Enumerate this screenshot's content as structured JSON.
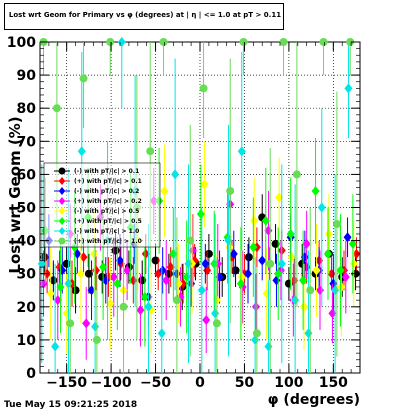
{
  "title": "Lost wrt Geom for Primary vs φ (degrees) at | η | <= 1.0 at pT > 0.11",
  "timestamp": "Tue May 15 09:21:25 2018",
  "chart_data": {
    "type": "scatter",
    "title": "Lost wrt Geom for Primary vs φ (degrees) at | η | <= 1.0 at pT > 0.11",
    "xlabel": "φ (degrees)",
    "ylabel": "Lost wrt Geom (%)",
    "xlim": [
      -180,
      180
    ],
    "ylim": [
      0,
      100
    ],
    "x_ticks": [
      -150,
      -100,
      -50,
      0,
      50,
      100,
      150
    ],
    "x_tick_labels": [
      "−150",
      "−100",
      "−50",
      "0",
      "50",
      "100",
      "150"
    ],
    "y_ticks": [
      0,
      10,
      20,
      30,
      40,
      50,
      60,
      70,
      80,
      90,
      100
    ],
    "y_tick_labels": [
      "0",
      "10",
      "20",
      "30",
      "40",
      "50",
      "60",
      "70",
      "80",
      "90",
      "100"
    ],
    "grid": true,
    "legend_position": "left",
    "markers": [
      "circle",
      "diamond"
    ],
    "series": [
      {
        "name": "(-) with pT/|c| > 0.1",
        "marker": "circle",
        "color": "#000000",
        "x": [
          -175,
          -165,
          -150,
          -140,
          -125,
          -110,
          -95,
          -80,
          -65,
          -50,
          -35,
          -20,
          -5,
          10,
          25,
          40,
          55,
          70,
          85,
          100,
          115,
          130,
          145,
          160,
          175
        ],
        "y": [
          35,
          28,
          33,
          25,
          30,
          29,
          37,
          32,
          28,
          34,
          30,
          26,
          33,
          36,
          29,
          31,
          35,
          47,
          39,
          27,
          33,
          30,
          36,
          29,
          30
        ],
        "err": [
          5,
          6,
          5,
          7,
          6,
          5,
          6,
          5,
          6,
          5,
          6,
          7,
          5,
          6,
          6,
          5,
          6,
          7,
          6,
          5,
          6,
          5,
          6,
          6,
          5
        ]
      },
      {
        "name": "(+) with pT/|c| > 0.1",
        "marker": "diamond",
        "color": "#ff0000",
        "x": [
          -172,
          -158,
          -144,
          -131,
          -117,
          -103,
          -89,
          -75,
          -61,
          -47,
          -33,
          -19,
          -6,
          8,
          22,
          36,
          50,
          64,
          78,
          92,
          106,
          120,
          134,
          148,
          162,
          176
        ],
        "y": [
          30,
          32,
          27,
          35,
          31,
          29,
          33,
          28,
          36,
          30,
          32,
          27,
          34,
          31,
          29,
          35,
          30,
          38,
          33,
          37,
          28,
          32,
          34,
          30,
          31,
          36
        ],
        "err": [
          6,
          5,
          7,
          5,
          6,
          6,
          5,
          7,
          6,
          5,
          6,
          6,
          5,
          6,
          7,
          5,
          6,
          6,
          5,
          6,
          7,
          5,
          6,
          5,
          6,
          5
        ]
      },
      {
        "name": "(-) with pT/|c| > 0.2",
        "marker": "diamond",
        "color": "#0000ff",
        "x": [
          -170,
          -155,
          -138,
          -122,
          -106,
          -90,
          -74,
          -58,
          -42,
          -26,
          -10,
          6,
          22,
          38,
          54,
          70,
          86,
          102,
          118,
          134,
          150,
          166
        ],
        "y": [
          40,
          31,
          36,
          25,
          28,
          34,
          39,
          23,
          31,
          30,
          27,
          33,
          29,
          36,
          30,
          34,
          28,
          41,
          35,
          31,
          27,
          41
        ],
        "err": [
          8,
          7,
          6,
          9,
          7,
          8,
          6,
          9,
          7,
          8,
          7,
          6,
          8,
          7,
          9,
          6,
          8,
          7,
          8,
          7,
          9,
          6
        ]
      },
      {
        "name": "(+) with pT/|c| > 0.2",
        "marker": "diamond",
        "color": "#ff00ff",
        "x": [
          -176,
          -160,
          -146,
          -128,
          -112,
          -97,
          -82,
          -67,
          -52,
          -38,
          -22,
          -8,
          7,
          20,
          34,
          48,
          63,
          77,
          91,
          105,
          120,
          135,
          149,
          164
        ],
        "y": [
          27,
          22,
          42,
          15,
          47,
          29,
          31,
          19,
          52,
          28,
          23,
          37,
          16,
          33,
          51,
          26,
          20,
          43,
          31,
          22,
          39,
          25,
          18,
          29
        ],
        "err": [
          10,
          12,
          9,
          11,
          10,
          12,
          9,
          11,
          10,
          12,
          9,
          11,
          10,
          12,
          9,
          11,
          10,
          12,
          9,
          11,
          10,
          12,
          9,
          11
        ]
      },
      {
        "name": "(-) with pT/|c| > 0.5",
        "marker": "diamond",
        "color": "#ffff00",
        "x": [
          -168,
          -150,
          -134,
          -119,
          -101,
          -86,
          -70,
          -55,
          -40,
          -24,
          -9,
          5,
          19,
          33,
          47,
          61,
          75,
          89,
          103,
          117,
          131,
          145,
          159,
          173
        ],
        "y": [
          24,
          18,
          30,
          36,
          21,
          25,
          40,
          19,
          55,
          27,
          33,
          57,
          22,
          38,
          29,
          46,
          24,
          53,
          35,
          20,
          31,
          42,
          26,
          33
        ],
        "err": [
          14,
          12,
          15,
          13,
          14,
          12,
          15,
          13,
          14,
          12,
          15,
          13,
          14,
          12,
          15,
          13,
          14,
          12,
          15,
          13,
          14,
          12,
          15,
          13
        ]
      },
      {
        "name": "(+) with pT/|c| > 0.5",
        "marker": "diamond",
        "color": "#00ff00",
        "x": [
          -174,
          -157,
          -141,
          -126,
          -109,
          -93,
          -78,
          -62,
          -46,
          -30,
          -15,
          1,
          16,
          31,
          46,
          60,
          74,
          88,
          102,
          116,
          130,
          144,
          158,
          172
        ],
        "y": [
          43,
          26,
          38,
          47,
          32,
          27,
          44,
          23,
          52,
          36,
          29,
          48,
          33,
          41,
          27,
          38,
          46,
          30,
          42,
          28,
          55,
          36,
          31,
          39
        ],
        "err": [
          16,
          14,
          17,
          15,
          16,
          14,
          17,
          15,
          16,
          14,
          17,
          15,
          16,
          14,
          17,
          15,
          16,
          14,
          17,
          15,
          16,
          14,
          17,
          15
        ]
      },
      {
        "name": "(-) with pT/|c| > 1.0",
        "marker": "diamond",
        "color": "#00e5e5",
        "x": [
          -178,
          -163,
          -148,
          -133,
          -118,
          -104,
          -88,
          -73,
          -58,
          -43,
          -28,
          -13,
          2,
          17,
          32,
          47,
          62,
          77,
          92,
          107,
          122,
          137,
          152,
          167
        ],
        "y": [
          33,
          8,
          27,
          67,
          14,
          40,
          100,
          55,
          20,
          12,
          60,
          33,
          25,
          18,
          40,
          67,
          10,
          8,
          33,
          22,
          12,
          50,
          25,
          86
        ],
        "err": [
          30,
          25,
          35,
          30,
          25,
          30,
          20,
          35,
          25,
          20,
          35,
          30,
          25,
          30,
          35,
          30,
          25,
          20,
          30,
          35,
          25,
          30,
          35,
          15
        ]
      },
      {
        "name": "(+) with pT/|c| > 1.0",
        "marker": "circle",
        "color": "#66dd55",
        "x": [
          -176,
          -161,
          -146,
          -131,
          -116,
          -101,
          -86,
          -71,
          -56,
          -41,
          -26,
          -11,
          4,
          19,
          34,
          49,
          64,
          79,
          94,
          109,
          124,
          139,
          154,
          169
        ],
        "y": [
          100,
          80,
          15,
          89,
          10,
          100,
          20,
          50,
          67,
          100,
          22,
          40,
          86,
          15,
          55,
          100,
          12,
          33,
          100,
          60,
          25,
          100,
          45,
          100
        ],
        "err": [
          10,
          35,
          20,
          15,
          20,
          10,
          30,
          40,
          35,
          10,
          25,
          35,
          15,
          20,
          40,
          10,
          20,
          35,
          10,
          40,
          25,
          10,
          40,
          10
        ]
      }
    ]
  }
}
